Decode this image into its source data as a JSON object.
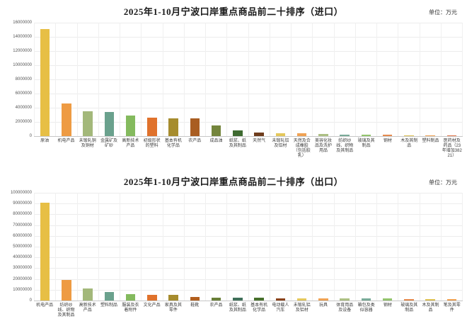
{
  "page": {
    "background": "#ffffff"
  },
  "import_chart": {
    "title": "2025年1-10月宁波口岸重点商品前二十排序（进口）",
    "unit_label": "单位：万元"
  },
  "export_chart": {
    "title": "2025年1-10月宁波口岸重点商品前二十排序（出口）",
    "unit_label": "单位：万元"
  },
  "chart_data": [
    {
      "id": "import",
      "type": "bar",
      "title": "2025年1-10月宁波口岸重点商品前二十排序（进口）",
      "unit": "万元",
      "ylabel": "万元",
      "xlabel": "",
      "ylim": [
        0,
        16000000
      ],
      "ytick_step": 2000000,
      "grid": true,
      "legend_position": "none",
      "categories": [
        "原油",
        "机电产品",
        "未锻轧铜及铜材",
        "金属矿及矿砂",
        "高新技术产品",
        "初级形状的塑料",
        "基本有机化学品",
        "农产品",
        "成品油",
        "纸浆、纸及其制品",
        "天然气",
        "未锻轧铝及铝材",
        "天然及合成橡胶（包括胶乳）",
        "美容化妆品及洗护用品",
        "纺织纱线、织物及其制品",
        "玻璃及其制品",
        "钢材",
        "木及其制品",
        "塑料制品",
        "医药材及药品（23年增加38221）"
      ],
      "values": [
        15100000,
        4600000,
        3500000,
        3400000,
        2900000,
        2600000,
        2550000,
        2500000,
        1500000,
        800000,
        550000,
        420000,
        400000,
        260000,
        250000,
        240000,
        160000,
        150000,
        120000,
        100000
      ],
      "colors": [
        "#e7bf45",
        "#ee9b43",
        "#a3b87a",
        "#6aa18d",
        "#84ba5e",
        "#e0722c",
        "#a68c2e",
        "#a95d21",
        "#74853c",
        "#3f6b31",
        "#6f3d1d",
        "#e5c85c",
        "#f0a254",
        "#adc084",
        "#79ab99",
        "#93c46d",
        "#e58a4e",
        "#dec155",
        "#f0a254",
        "#e2764a"
      ]
    },
    {
      "id": "export",
      "type": "bar",
      "title": "2025年1-10月宁波口岸重点商品前二十排序（出口）",
      "unit": "万元",
      "ylabel": "万元",
      "xlabel": "",
      "ylim": [
        0,
        100000000
      ],
      "ytick_step": 10000000,
      "grid": true,
      "legend_position": "none",
      "categories": [
        "机电产品",
        "纺织纱线、织物及其制品",
        "高新技术产品",
        "塑料制品",
        "服装及衣着附件",
        "文化产品",
        "家具及其零件",
        "鞋靴",
        "农产品",
        "纸浆、纸及其制品",
        "基本有机化学品",
        "电动载人汽车",
        "未锻轧铝及铝材",
        "玩具",
        "体育用品及设备",
        "箱包及类似容器",
        "钢材",
        "玻璃及其制品",
        "木及其制品",
        "笔及其零件"
      ],
      "values": [
        91000000,
        19000000,
        11500000,
        7700000,
        5800000,
        5500000,
        5000000,
        3100000,
        2900000,
        2700000,
        2500000,
        2300000,
        2100000,
        2000000,
        1900000,
        1800000,
        1700000,
        1600000,
        1500000,
        1400000
      ],
      "colors": [
        "#e7bf45",
        "#ee9b43",
        "#a3b87a",
        "#6aa18d",
        "#84ba5e",
        "#e0722c",
        "#a68c2e",
        "#b25f1e",
        "#697f38",
        "#40705a",
        "#47702c",
        "#8a431c",
        "#e5c85c",
        "#f0a254",
        "#adc084",
        "#79ab99",
        "#93c46d",
        "#e58a4e",
        "#dec155",
        "#f0a254"
      ]
    }
  ]
}
